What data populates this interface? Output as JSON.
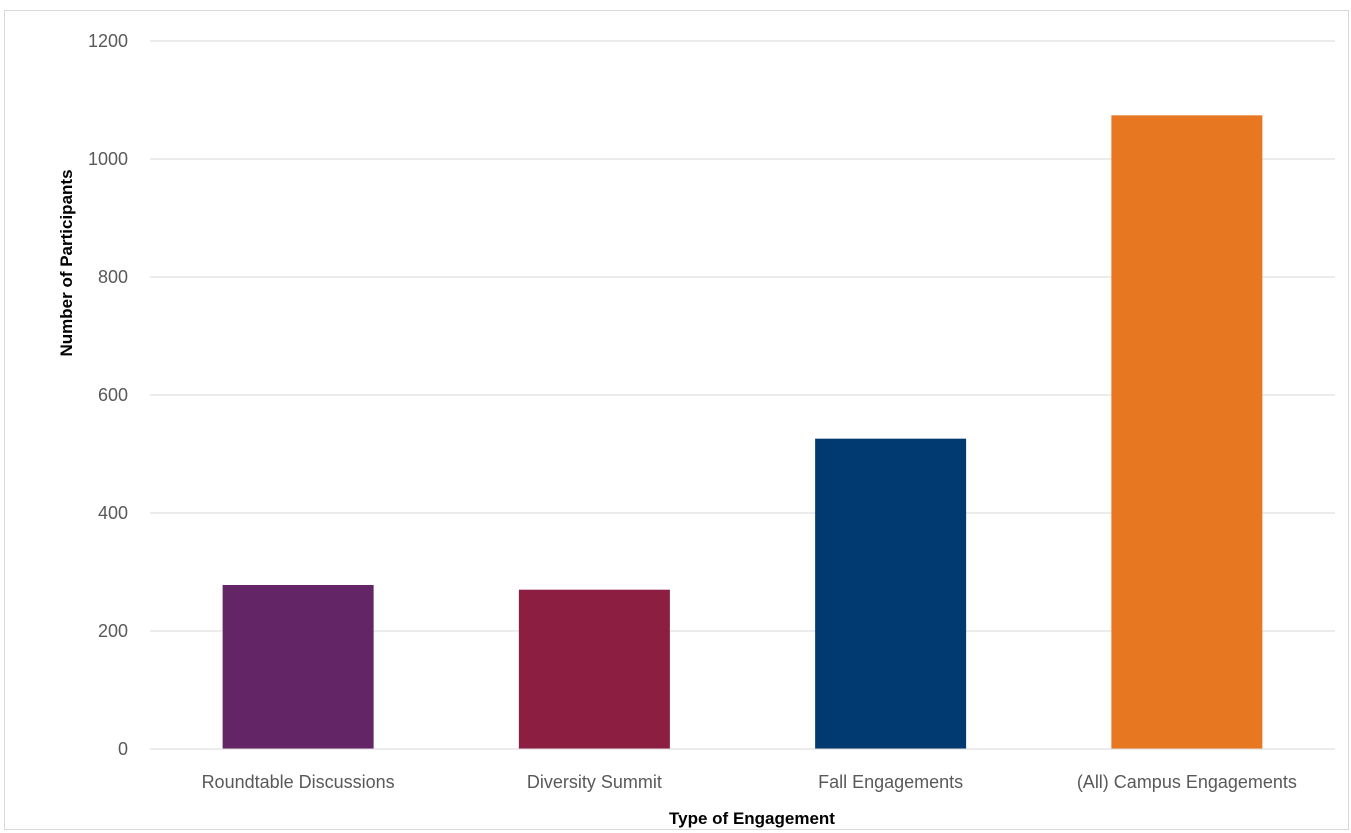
{
  "chart_data": {
    "type": "bar",
    "title": "",
    "xlabel": "Type of Engagement",
    "ylabel": "Number of Participants",
    "ylim": [
      0,
      1200
    ],
    "yticks": [
      0,
      200,
      400,
      600,
      800,
      1000,
      1200
    ],
    "grid": true,
    "legend": "none",
    "categories": [
      "Roundtable Discussions",
      "Diversity Summit",
      "Fall Engagements",
      "(All) Campus Engagements"
    ],
    "values": [
      278,
      270,
      526,
      1074
    ],
    "colors": [
      "#642566",
      "#8b1e41",
      "#003a70",
      "#e87722"
    ]
  }
}
